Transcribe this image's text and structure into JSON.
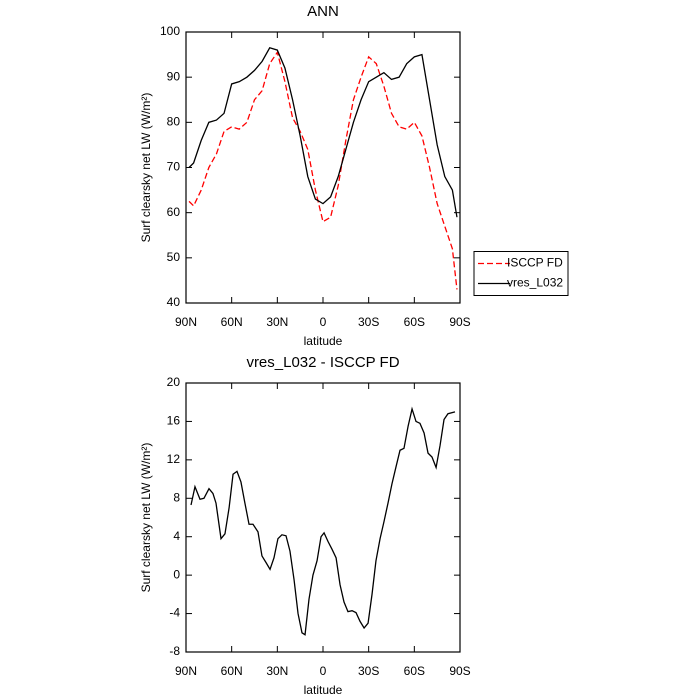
{
  "chart_data": [
    {
      "type": "line",
      "title": "ANN",
      "xlabel": "latitude",
      "ylabel": "Surf clearsky net LW (W/m²)",
      "xlim": [
        90,
        -90
      ],
      "ylim": [
        40,
        100
      ],
      "xticks": [
        {
          "value": 90,
          "label": "90N"
        },
        {
          "value": 60,
          "label": "60N"
        },
        {
          "value": 30,
          "label": "30N"
        },
        0,
        {
          "value": -30,
          "label": "30S"
        },
        {
          "value": -60,
          "label": "60S"
        },
        {
          "value": -90,
          "label": "90S"
        }
      ],
      "yticks": [
        40,
        50,
        60,
        70,
        80,
        90,
        100
      ],
      "legend": "right",
      "x": [
        88,
        85,
        80,
        75,
        70,
        65,
        60,
        55,
        50,
        45,
        40,
        35,
        30,
        25,
        20,
        15,
        10,
        5,
        0,
        -5,
        -10,
        -15,
        -20,
        -25,
        -30,
        -35,
        -40,
        -45,
        -50,
        -55,
        -60,
        -65,
        -70,
        -75,
        -80,
        -85,
        -88
      ],
      "series": [
        {
          "name": "ISCCP FD",
          "color": "#ff0000",
          "style": "dashed",
          "values": [
            62.5,
            61.5,
            65,
            70,
            73,
            78,
            79,
            78.5,
            80,
            85,
            87,
            93,
            95.5,
            89,
            81,
            78,
            74,
            65,
            58,
            59,
            66,
            76,
            85,
            90,
            94.5,
            93,
            88,
            82,
            79,
            78.5,
            80,
            77,
            70,
            62,
            57,
            52,
            43
          ]
        },
        {
          "name": "vres_L032",
          "color": "#000000",
          "style": "solid",
          "values": [
            70,
            71,
            76,
            80,
            80.5,
            82,
            88.5,
            89,
            90,
            91.5,
            93.5,
            96.5,
            96,
            92,
            85,
            77,
            68,
            63,
            62,
            63.5,
            68,
            74,
            80,
            85,
            89,
            90,
            91,
            89.5,
            90,
            93,
            94.5,
            95,
            85,
            75,
            68,
            65,
            59
          ]
        }
      ]
    },
    {
      "type": "line",
      "title": "vres_L032 - ISCCP FD",
      "xlabel": "latitude",
      "ylabel": "Surf clearsky net LW (W/m²)",
      "xlim": [
        90,
        -90
      ],
      "ylim": [
        -8,
        20
      ],
      "xticks": [
        {
          "value": 90,
          "label": "90N"
        },
        {
          "value": 60,
          "label": "60N"
        },
        {
          "value": 30,
          "label": "30N"
        },
        0,
        {
          "value": -30,
          "label": "30S"
        },
        {
          "value": -60,
          "label": "60S"
        },
        {
          "value": -90,
          "label": "90S"
        }
      ],
      "yticks": [
        -8,
        -4,
        0,
        4,
        8,
        12,
        16,
        20
      ],
      "x": [
        86.7,
        84.1,
        80.8,
        78.2,
        74.9,
        72.3,
        70.3,
        67.0,
        64.4,
        61.7,
        59.1,
        56.5,
        53.9,
        51.3,
        48.6,
        46.0,
        42.7,
        40.1,
        37.4,
        34.8,
        32.2,
        29.6,
        27.0,
        24.3,
        21.7,
        19.0,
        16.4,
        13.8,
        11.8,
        9.2,
        6.6,
        3.9,
        1.3,
        -0.7,
        -3.3,
        -5.9,
        -8.6,
        -11.2,
        -13.8,
        -16.4,
        -19.1,
        -21.7,
        -24.3,
        -27.0,
        -29.6,
        -32.2,
        -34.8,
        -37.5,
        -40.1,
        -42.7,
        -45.3,
        -48.0,
        -50.6,
        -53.2,
        -55.9,
        -58.5,
        -61.1,
        -63.7,
        -66.4,
        -69.0,
        -71.6,
        -74.3,
        -76.9,
        -79.5,
        -82.1,
        -86.7
      ],
      "series": [
        {
          "color": "#000000",
          "style": "solid",
          "values": [
            7.3,
            9.2,
            7.9,
            8,
            9,
            8.5,
            7.5,
            3.8,
            4.3,
            7,
            10.5,
            10.8,
            9.7,
            7.5,
            5.3,
            5.3,
            4.5,
            2,
            1.3,
            0.6,
            1.8,
            3.8,
            4.2,
            4.1,
            2.5,
            -0.5,
            -4,
            -6,
            -6.2,
            -2.5,
            0,
            1.5,
            4,
            4.4,
            3.5,
            2.7,
            1.8,
            -1,
            -2.8,
            -3.8,
            -3.7,
            -3.9,
            -4.8,
            -5.5,
            -5,
            -2,
            1.5,
            3.8,
            5.6,
            7.5,
            9.5,
            11.3,
            13,
            13.2,
            15.5,
            17.3,
            16,
            15.8,
            14.8,
            12.7,
            12.3,
            11.2,
            13.5,
            16.2,
            16.8,
            17
          ]
        }
      ]
    }
  ]
}
